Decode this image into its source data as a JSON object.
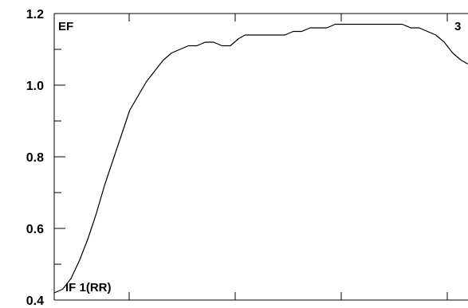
{
  "chart_data": {
    "type": "line",
    "title": "",
    "xlabel": "",
    "ylabel": "",
    "ylim": [
      0.4,
      1.2
    ],
    "xlim": [
      0,
      1
    ],
    "y_ticks": [
      0.4,
      0.6,
      0.8,
      1.0,
      1.2
    ],
    "y_tick_labels": [
      "0.4",
      "0.6",
      "0.8",
      "1.0",
      "1.2"
    ],
    "grid": false,
    "legend": "none",
    "annotations": {
      "top_left": "EF",
      "top_right": "3",
      "bottom_left": "IF 1(RR)"
    },
    "series": [
      {
        "color": "#000000",
        "x": [
          0.0,
          0.02,
          0.04,
          0.06,
          0.08,
          0.1,
          0.12,
          0.14,
          0.16,
          0.18,
          0.2,
          0.22,
          0.24,
          0.26,
          0.28,
          0.3,
          0.32,
          0.34,
          0.36,
          0.38,
          0.4,
          0.42,
          0.44,
          0.455,
          0.47,
          0.49,
          0.51,
          0.53,
          0.55,
          0.57,
          0.59,
          0.61,
          0.63,
          0.65,
          0.67,
          0.69,
          0.71,
          0.73,
          0.75,
          0.77,
          0.79,
          0.81,
          0.83,
          0.85,
          0.87,
          0.89,
          0.91,
          0.93,
          0.95,
          0.97,
          0.985,
          1.0
        ],
        "values": [
          0.42,
          0.43,
          0.46,
          0.51,
          0.57,
          0.64,
          0.72,
          0.79,
          0.86,
          0.93,
          0.97,
          1.01,
          1.04,
          1.07,
          1.09,
          1.1,
          1.11,
          1.11,
          1.12,
          1.12,
          1.11,
          1.11,
          1.13,
          1.14,
          1.14,
          1.14,
          1.14,
          1.14,
          1.14,
          1.15,
          1.15,
          1.16,
          1.16,
          1.16,
          1.17,
          1.17,
          1.17,
          1.17,
          1.17,
          1.17,
          1.17,
          1.17,
          1.17,
          1.16,
          1.16,
          1.15,
          1.14,
          1.12,
          1.09,
          1.07,
          1.06,
          1.06
        ]
      }
    ]
  }
}
